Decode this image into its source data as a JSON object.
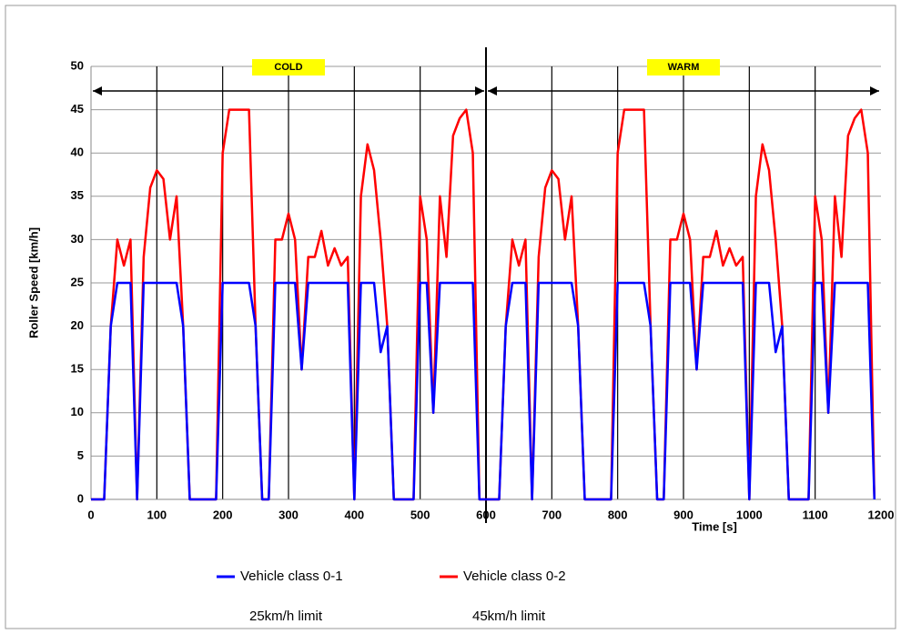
{
  "chart_data": {
    "type": "line",
    "ylabel": "Roller Speed [km/h]",
    "xlabel": "Time [s]",
    "xlim": [
      0,
      1200
    ],
    "xticks": [
      0,
      100,
      200,
      300,
      400,
      500,
      600,
      700,
      800,
      900,
      1000,
      1100,
      1200
    ],
    "ylim": [
      0,
      50
    ],
    "yticks": [
      0,
      5,
      10,
      15,
      20,
      25,
      30,
      35,
      40,
      45,
      50
    ],
    "grid": true,
    "phases": [
      {
        "label": "COLD",
        "from": 0,
        "to": 600
      },
      {
        "label": "WARM",
        "from": 600,
        "to": 1200
      }
    ],
    "x": [
      0,
      10,
      20,
      30,
      40,
      50,
      60,
      70,
      80,
      90,
      100,
      110,
      120,
      130,
      140,
      150,
      160,
      170,
      180,
      190,
      200,
      210,
      220,
      230,
      240,
      250,
      260,
      270,
      280,
      290,
      300,
      310,
      320,
      330,
      340,
      350,
      360,
      370,
      380,
      390,
      400,
      410,
      420,
      430,
      440,
      450,
      460,
      470,
      480,
      490,
      500,
      510,
      520,
      530,
      540,
      550,
      560,
      570,
      580,
      590,
      600,
      610,
      620,
      630,
      640,
      650,
      660,
      670,
      680,
      690,
      700,
      710,
      720,
      730,
      740,
      750,
      760,
      770,
      780,
      790,
      800,
      810,
      820,
      830,
      840,
      850,
      860,
      870,
      880,
      890,
      900,
      910,
      920,
      930,
      940,
      950,
      960,
      970,
      980,
      990,
      1000,
      1010,
      1020,
      1030,
      1040,
      1050,
      1060,
      1070,
      1080,
      1090,
      1100,
      1110,
      1120,
      1130,
      1140,
      1150,
      1160,
      1170,
      1180,
      1190
    ],
    "series": [
      {
        "name": "Vehicle class 0-2",
        "note": "45km/h limit",
        "color": "#ff0000",
        "values": [
          0,
          0,
          0,
          20,
          30,
          27,
          30,
          0,
          28,
          36,
          38,
          37,
          30,
          35,
          20,
          0,
          0,
          0,
          0,
          0,
          40,
          45,
          45,
          45,
          45,
          20,
          0,
          0,
          30,
          30,
          33,
          30,
          15,
          28,
          28,
          31,
          27,
          29,
          27,
          28,
          0,
          35,
          41,
          38,
          30,
          20,
          0,
          0,
          0,
          0,
          35,
          30,
          10,
          35,
          28,
          42,
          44,
          45,
          40,
          0,
          0,
          0,
          0,
          20,
          30,
          27,
          30,
          0,
          28,
          36,
          38,
          37,
          30,
          35,
          20,
          0,
          0,
          0,
          0,
          0,
          40,
          45,
          45,
          45,
          45,
          20,
          0,
          0,
          30,
          30,
          33,
          30,
          15,
          28,
          28,
          31,
          27,
          29,
          27,
          28,
          0,
          35,
          41,
          38,
          30,
          20,
          0,
          0,
          0,
          0,
          35,
          30,
          10,
          35,
          28,
          42,
          44,
          45,
          40,
          0
        ]
      },
      {
        "name": "Vehicle class 0-1",
        "note": "25km/h limit",
        "color": "#0000ff",
        "values": [
          0,
          0,
          0,
          20,
          25,
          25,
          25,
          0,
          25,
          25,
          25,
          25,
          25,
          25,
          20,
          0,
          0,
          0,
          0,
          0,
          25,
          25,
          25,
          25,
          25,
          20,
          0,
          0,
          25,
          25,
          25,
          25,
          15,
          25,
          25,
          25,
          25,
          25,
          25,
          25,
          0,
          25,
          25,
          25,
          17,
          20,
          0,
          0,
          0,
          0,
          25,
          25,
          10,
          25,
          25,
          25,
          25,
          25,
          25,
          0,
          0,
          0,
          0,
          20,
          25,
          25,
          25,
          0,
          25,
          25,
          25,
          25,
          25,
          25,
          20,
          0,
          0,
          0,
          0,
          0,
          25,
          25,
          25,
          25,
          25,
          20,
          0,
          0,
          25,
          25,
          25,
          25,
          15,
          25,
          25,
          25,
          25,
          25,
          25,
          25,
          0,
          25,
          25,
          25,
          17,
          20,
          0,
          0,
          0,
          0,
          25,
          25,
          10,
          25,
          25,
          25,
          25,
          25,
          25,
          0
        ]
      }
    ]
  }
}
